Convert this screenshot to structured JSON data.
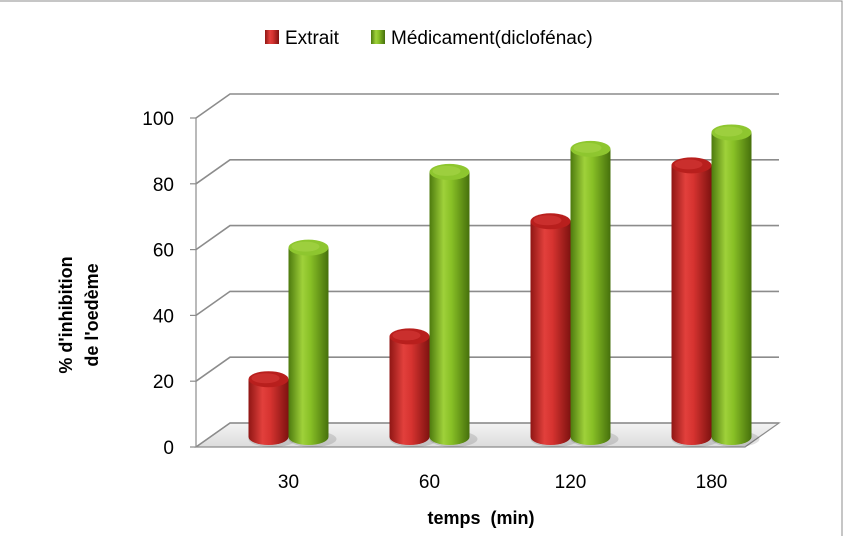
{
  "chart_data": {
    "type": "bar",
    "title": "",
    "xlabel": "temps  (min)",
    "ylabel_lines": [
      "% d'inhibition",
      "de l'oedème"
    ],
    "categories": [
      "30",
      "60",
      "120",
      "180"
    ],
    "series": [
      {
        "name": "Extrait",
        "values": [
          20,
          33,
          68,
          85
        ],
        "color": "#cc2a28"
      },
      {
        "name": "Médicament(diclofénac)",
        "values": [
          60,
          83,
          90,
          95
        ],
        "color": "#7ab51d"
      }
    ],
    "ylim": [
      0,
      100
    ],
    "yticks": [
      0,
      20,
      40,
      60,
      80,
      100
    ],
    "grid": true,
    "legend_position": "top"
  }
}
